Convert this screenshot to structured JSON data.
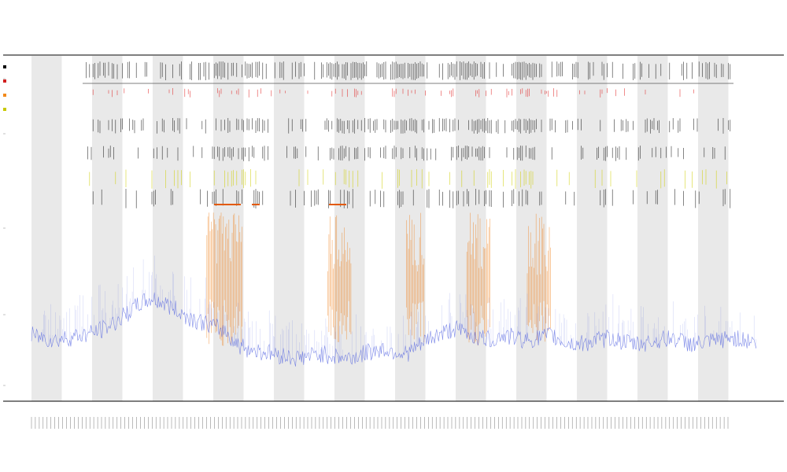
{
  "chart_data": {
    "type": "line",
    "title": "",
    "subtitle_1": "",
    "subtitle_2": "",
    "xlabel": "",
    "ylabel": "",
    "grid": false,
    "legend_position": "top-left",
    "legend": [
      {
        "name": "",
        "color": "#000000"
      },
      {
        "name": "",
        "color": "#d11f1f"
      },
      {
        "name": "",
        "color": "#f28a1b"
      },
      {
        "name": "",
        "color": "#c8c800"
      }
    ],
    "band_row_labels": [
      "",
      ""
    ],
    "colors": {
      "signal": "#4a5be0",
      "signal_hot": "#ee7a10",
      "event_black": "#111111",
      "event_red": "#e02020",
      "event_yellow": "#cfcf00",
      "event_orange": "#e35a00",
      "band_fill": "#e9e9e9",
      "axis": "#333333"
    },
    "series": [
      {
        "name": "",
        "x": [
          0,
          2,
          4,
          6,
          8,
          10,
          12,
          14,
          16,
          18,
          20,
          22,
          24,
          26,
          28,
          30,
          32,
          34,
          36,
          38,
          40,
          42,
          44,
          46,
          48,
          50,
          52,
          54,
          56,
          58,
          60,
          62,
          64,
          66,
          68,
          70,
          72,
          74,
          76,
          78,
          80,
          82,
          84,
          86,
          88,
          90,
          92,
          94,
          96,
          98,
          100,
          102,
          104,
          106,
          108,
          110,
          112,
          114,
          116,
          118,
          120
        ],
        "y": [
          0.15,
          0.14,
          0.13,
          0.14,
          0.15,
          0.16,
          0.18,
          0.21,
          0.25,
          0.29,
          0.31,
          0.29,
          0.26,
          0.23,
          0.21,
          0.19,
          0.17,
          0.11,
          0.09,
          0.08,
          0.07,
          0.06,
          0.05,
          0.06,
          0.07,
          0.06,
          0.05,
          0.06,
          0.08,
          0.09,
          0.08,
          0.07,
          0.1,
          0.14,
          0.16,
          0.18,
          0.16,
          0.14,
          0.13,
          0.15,
          0.14,
          0.13,
          0.14,
          0.15,
          0.12,
          0.11,
          0.12,
          0.13,
          0.14,
          0.12,
          0.11,
          0.12,
          0.13,
          0.14,
          0.12,
          0.11,
          0.12,
          0.13,
          0.14,
          0.13,
          0.12
        ]
      }
    ],
    "highlight_regions": [
      {
        "from": 29,
        "to": 35,
        "label": ""
      },
      {
        "from": 49,
        "to": 53,
        "label": ""
      },
      {
        "from": 62,
        "to": 65,
        "label": ""
      },
      {
        "from": 72,
        "to": 76,
        "label": ""
      },
      {
        "from": 82,
        "to": 86,
        "label": ""
      }
    ],
    "x_tick_count": 180,
    "ylim": [
      0,
      1
    ],
    "xlim": [
      0,
      120
    ]
  }
}
